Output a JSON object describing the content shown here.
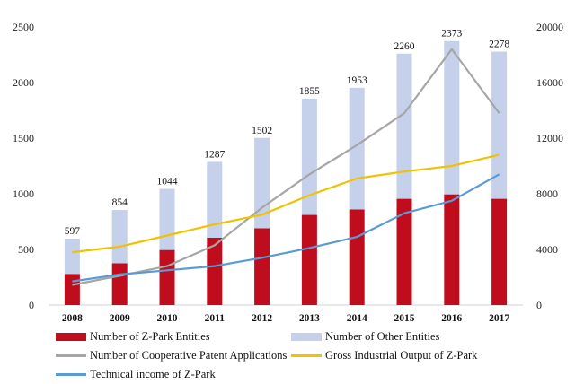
{
  "chart_data": {
    "type": "bar",
    "categories": [
      "2008",
      "2009",
      "2010",
      "2011",
      "2012",
      "2013",
      "2014",
      "2015",
      "2016",
      "2017"
    ],
    "series": [
      {
        "name": "Number of Z-Park Entities",
        "kind": "stacked-bar",
        "axis": "left",
        "color": "#c00d1e",
        "values": [
          280,
          375,
          495,
          605,
          690,
          810,
          860,
          955,
          995,
          955
        ]
      },
      {
        "name": "Number of Other Entities",
        "kind": "stacked-bar",
        "axis": "left",
        "color": "#c5d0ea",
        "values": [
          317,
          479,
          549,
          682,
          812,
          1045,
          1093,
          1305,
          1378,
          1323
        ]
      },
      {
        "name": "Number of Cooperative Patent Applications",
        "kind": "line",
        "axis": "right",
        "color": "#a6a6a6",
        "values": [
          1450,
          2100,
          2800,
          4300,
          7000,
          9400,
          11500,
          13800,
          18400,
          13800
        ]
      },
      {
        "name": "Gross Industrial Output of Z-Park",
        "kind": "line",
        "axis": "right",
        "color": "#f2c200",
        "values": [
          3800,
          4200,
          5000,
          5800,
          6500,
          7900,
          9100,
          9600,
          10000,
          10800
        ]
      },
      {
        "name": "Technical income of Z-Park",
        "kind": "line",
        "axis": "right",
        "color": "#5b9bd5",
        "values": [
          1700,
          2200,
          2500,
          2800,
          3400,
          4100,
          4900,
          6600,
          7500,
          9400
        ]
      }
    ],
    "totals": [
      597,
      854,
      1044,
      1287,
      1502,
      1855,
      1953,
      2260,
      2373,
      2278
    ],
    "left_axis": {
      "ylim": [
        0,
        2500
      ],
      "ticks": [
        0,
        500,
        1000,
        1500,
        2000,
        2500
      ]
    },
    "right_axis": {
      "ylim": [
        0,
        20000
      ],
      "ticks": [
        0,
        4000,
        8000,
        12000,
        16000,
        20000
      ]
    },
    "legend_position": "bottom",
    "grid": false
  }
}
